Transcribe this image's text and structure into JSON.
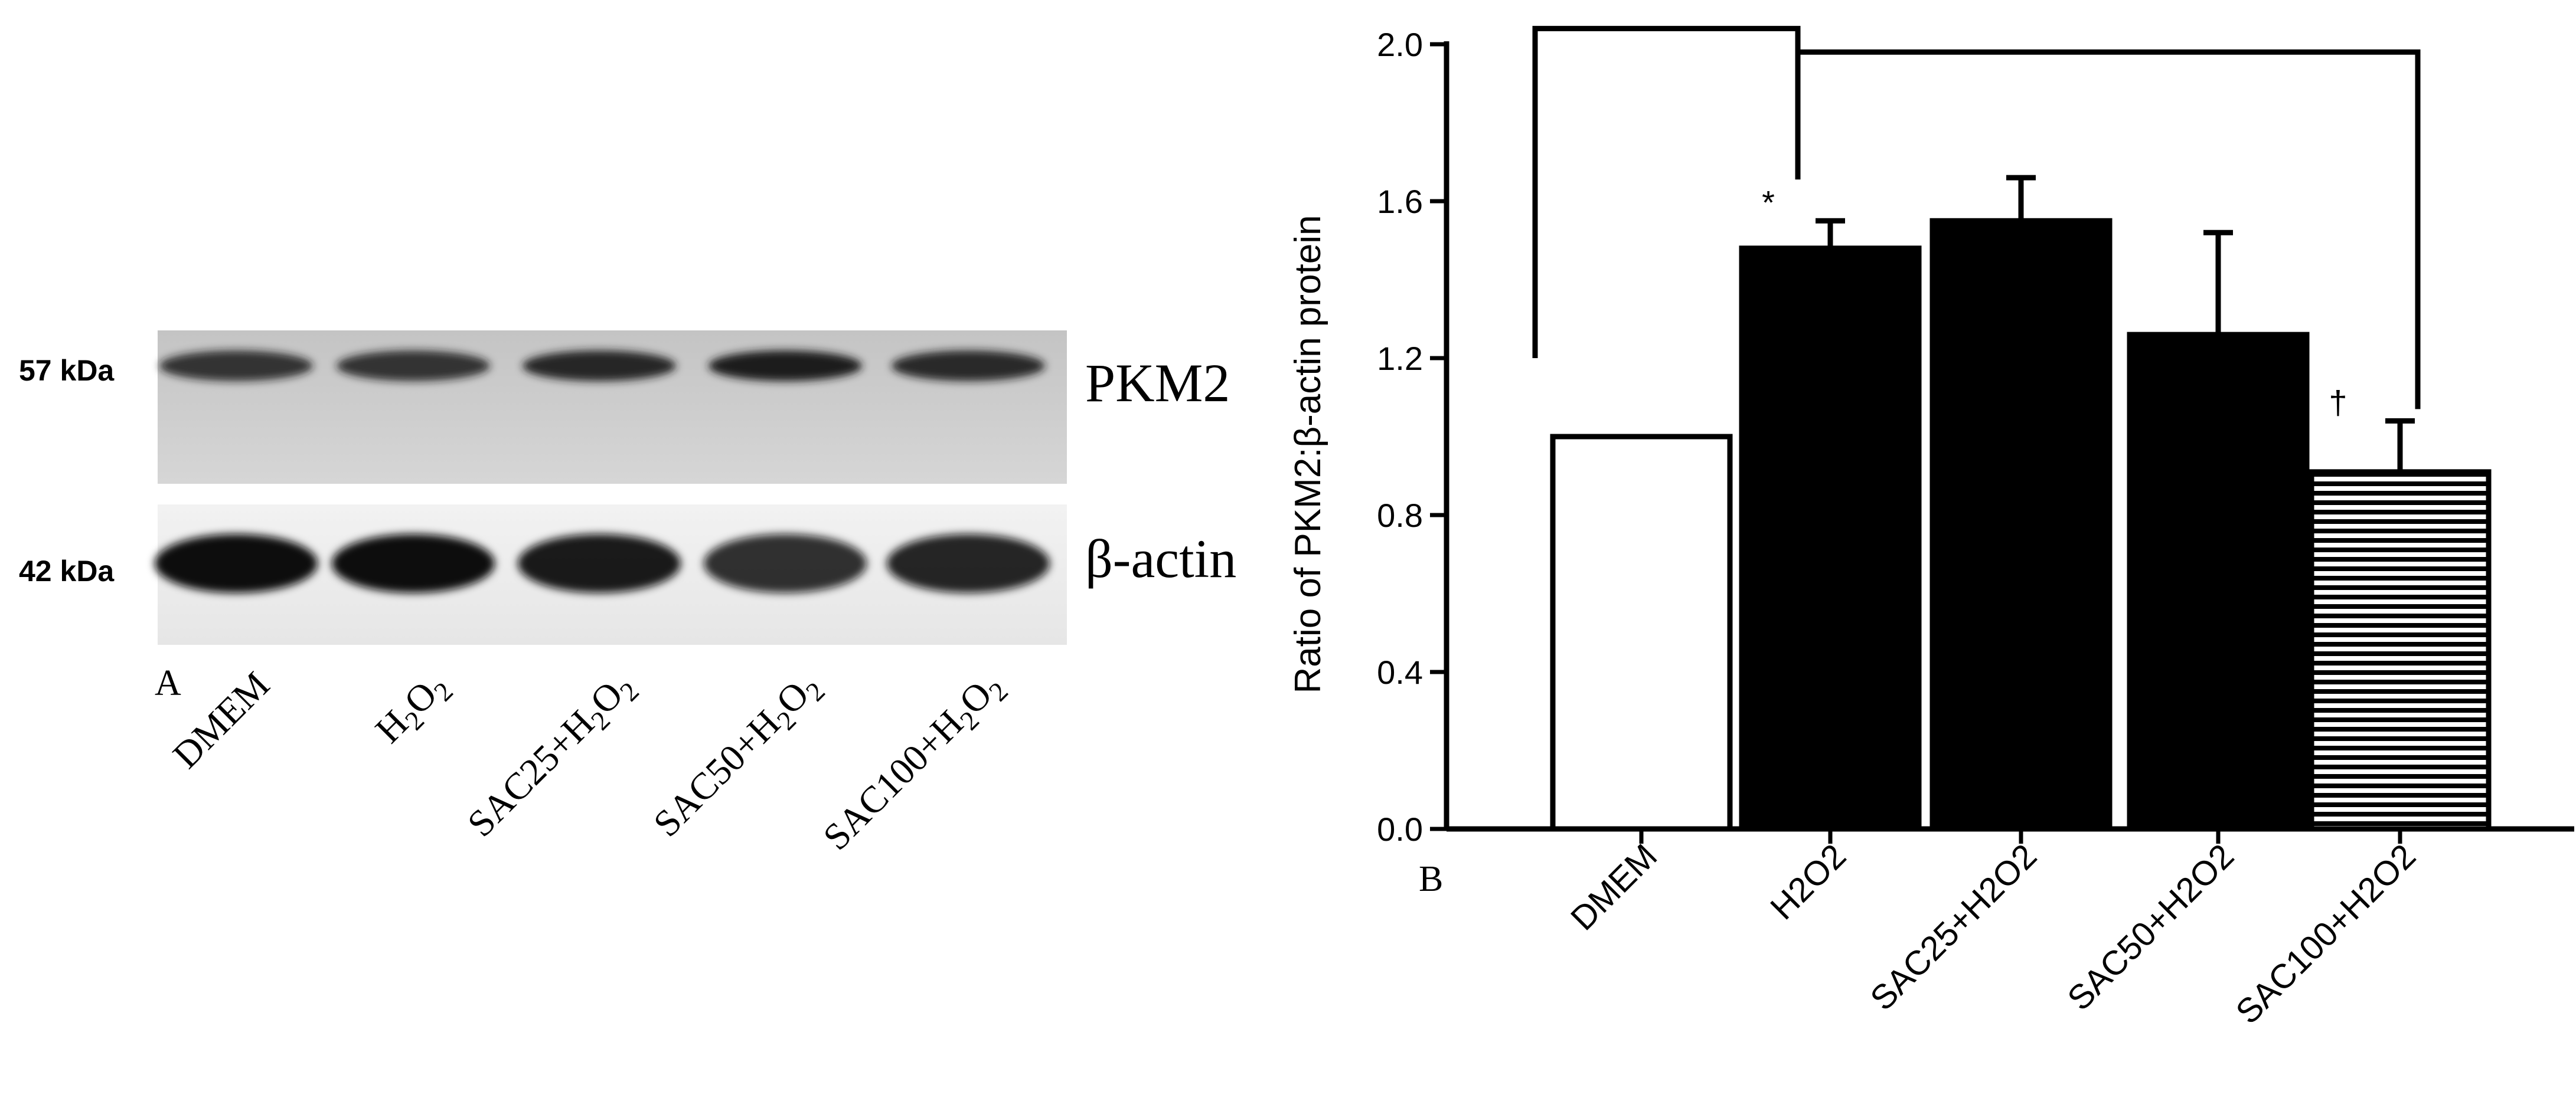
{
  "panel_a": {
    "label": "A",
    "mw_labels": [
      "57 kDa",
      "42 kDa"
    ],
    "blot_labels": [
      "PKM2",
      "β-actin"
    ],
    "lanes": [
      {
        "name": "DMEM",
        "base": "DMEM",
        "sub": ""
      },
      {
        "name": "H2O2",
        "base": "H",
        "sub": "2",
        "mid": "O",
        "sub2": "2",
        "prefix": ""
      },
      {
        "name": "SAC25+H2O2",
        "prefix": "SAC25+",
        "base": "H",
        "sub": "2",
        "mid": "O",
        "sub2": "2"
      },
      {
        "name": "SAC50+H2O2",
        "prefix": "SAC50+",
        "base": "H",
        "sub": "2",
        "mid": "O",
        "sub2": "2"
      },
      {
        "name": "SAC100+H2O2",
        "prefix": "SAC100+",
        "base": "H",
        "sub": "2",
        "mid": "O",
        "sub2": "2"
      }
    ],
    "band_intensity": {
      "PKM2": [
        0.85,
        0.85,
        0.95,
        1.0,
        0.9
      ],
      "beta_actin": [
        1.0,
        1.0,
        0.95,
        0.85,
        0.9
      ]
    }
  },
  "panel_b": {
    "label": "B",
    "significance": {
      "star": "*",
      "dagger": "†"
    }
  },
  "colors": {
    "ink": "#000000",
    "background": "#ffffff",
    "blot_bg_top": "#c9c9c9",
    "blot_bg_bottom": "#ededed"
  },
  "chart_data": {
    "type": "bar",
    "title": "",
    "xlabel": "",
    "ylabel": "Ratio of PKM2:β-actin protein",
    "ylim": [
      0,
      2.0
    ],
    "yticks": [
      "0.0",
      "0.4",
      "0.8",
      "1.2",
      "1.6",
      "2.0"
    ],
    "categories": [
      "DMEM",
      "H2O2",
      "SAC25+H2O2",
      "SAC50+H2O2",
      "SAC100+H2O2"
    ],
    "values": [
      1.0,
      1.48,
      1.55,
      1.26,
      0.91
    ],
    "errors": [
      0.0,
      0.07,
      0.11,
      0.26,
      0.13
    ],
    "fills": [
      "white",
      "black",
      "black",
      "black",
      "hatched"
    ],
    "annotations": [
      {
        "category": "H2O2",
        "text": "*"
      },
      {
        "category": "SAC100+H2O2",
        "text": "†"
      }
    ],
    "brackets": [
      {
        "from": "DMEM",
        "to": "H2O2"
      },
      {
        "from": "H2O2",
        "to": "SAC100+H2O2"
      }
    ],
    "grid": false,
    "legend": "none"
  }
}
